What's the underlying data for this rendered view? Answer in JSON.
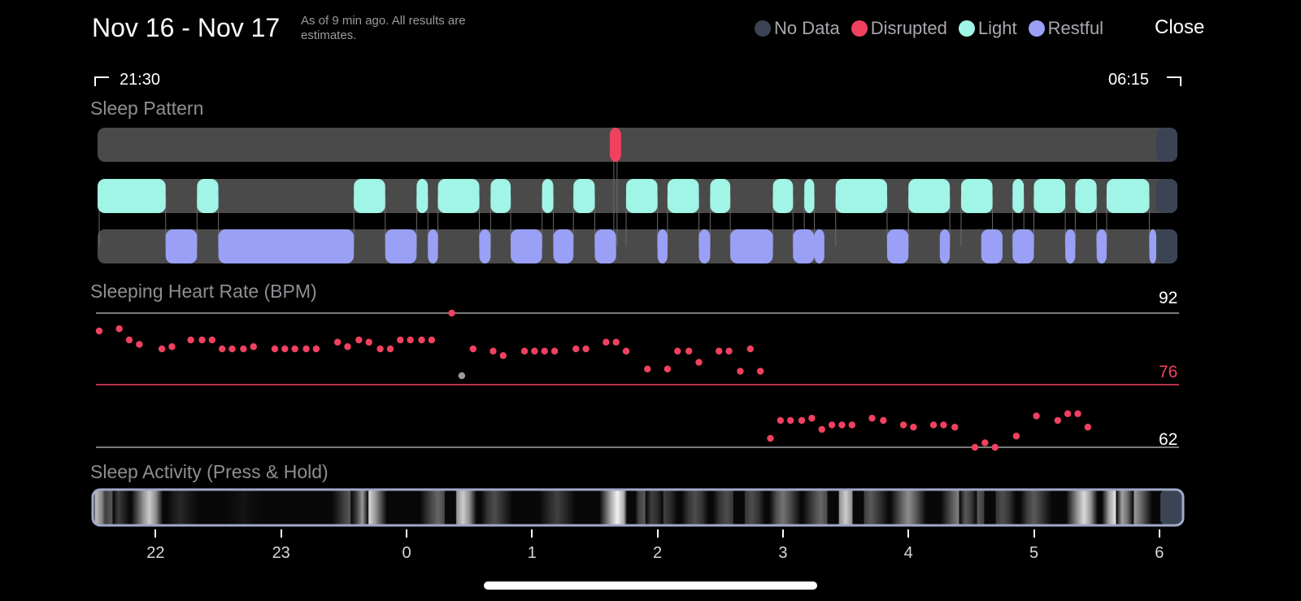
{
  "header": {
    "title": "Nov 16 - Nov 17",
    "subtitle": "As of 9 min ago. All results are estimates.",
    "close_label": "Close"
  },
  "legend": [
    {
      "label": "No Data",
      "color": "#3b4454"
    },
    {
      "label": "Disrupted",
      "color": "#f0415f"
    },
    {
      "label": "Light",
      "color": "#a1f5e6"
    },
    {
      "label": "Restful",
      "color": "#9aa0f5"
    }
  ],
  "timeline": {
    "start": "21:30",
    "end": "06:15"
  },
  "sleep_pattern": {
    "label": "Sleep Pattern",
    "disrupted": [
      [
        1.62,
        1.71
      ]
    ],
    "light": [
      [
        -2.5,
        -1.92
      ],
      [
        -1.67,
        -1.5
      ],
      [
        -0.42,
        -0.17
      ],
      [
        0.08,
        0.17
      ],
      [
        0.25,
        0.58
      ],
      [
        0.67,
        0.83
      ],
      [
        1.08,
        1.17
      ],
      [
        1.33,
        1.5
      ],
      [
        1.75,
        2.0
      ],
      [
        2.08,
        2.33
      ],
      [
        2.42,
        2.58
      ],
      [
        2.92,
        3.08
      ],
      [
        3.17,
        3.25
      ],
      [
        3.42,
        3.83
      ],
      [
        4.0,
        4.33
      ],
      [
        4.42,
        4.67
      ],
      [
        4.83,
        4.92
      ],
      [
        5.0,
        5.25
      ],
      [
        5.33,
        5.5
      ],
      [
        5.58,
        5.92
      ]
    ],
    "restful": [
      [
        -1.92,
        -1.67
      ],
      [
        -1.5,
        -0.42
      ],
      [
        -0.17,
        0.08
      ],
      [
        0.17,
        0.25
      ],
      [
        0.58,
        0.67
      ],
      [
        0.83,
        1.08
      ],
      [
        1.17,
        1.33
      ],
      [
        1.5,
        1.67
      ],
      [
        2.0,
        2.08
      ],
      [
        2.33,
        2.42
      ],
      [
        2.58,
        2.92
      ],
      [
        3.08,
        3.25
      ],
      [
        3.25,
        3.33
      ],
      [
        3.83,
        4.0
      ],
      [
        4.25,
        4.33
      ],
      [
        4.58,
        4.75
      ],
      [
        4.83,
        5.0
      ],
      [
        5.25,
        5.33
      ],
      [
        5.5,
        5.58
      ],
      [
        5.92,
        6.0
      ]
    ]
  },
  "heart_rate": {
    "label": "Sleeping Heart Rate (BPM)",
    "max_label": "92",
    "avg_label": "76",
    "min_label": "62",
    "max": 92,
    "avg": 76,
    "min": 62,
    "points": [
      [
        -2.45,
        88
      ],
      [
        -2.29,
        88.5
      ],
      [
        -2.21,
        86
      ],
      [
        -2.13,
        85
      ],
      [
        -1.95,
        84
      ],
      [
        -1.87,
        84.5
      ],
      [
        -1.72,
        86
      ],
      [
        -1.63,
        86
      ],
      [
        -1.55,
        86
      ],
      [
        -1.47,
        84
      ],
      [
        -1.39,
        84
      ],
      [
        -1.3,
        84
      ],
      [
        -1.22,
        84.5
      ],
      [
        -1.05,
        84
      ],
      [
        -0.97,
        84
      ],
      [
        -0.89,
        84
      ],
      [
        -0.8,
        84
      ],
      [
        -0.72,
        84
      ],
      [
        -0.55,
        85.5
      ],
      [
        -0.47,
        84.5
      ],
      [
        -0.38,
        86
      ],
      [
        -0.3,
        85.5
      ],
      [
        -0.21,
        84
      ],
      [
        -0.13,
        84
      ],
      [
        -0.05,
        86
      ],
      [
        0.03,
        86
      ],
      [
        0.12,
        86
      ],
      [
        0.2,
        86
      ],
      [
        0.36,
        92
      ],
      [
        0.44,
        78
      ],
      [
        0.53,
        84
      ],
      [
        0.69,
        83.5
      ],
      [
        0.77,
        82.5
      ],
      [
        0.94,
        83.5
      ],
      [
        1.02,
        83.5
      ],
      [
        1.1,
        83.5
      ],
      [
        1.18,
        83.5
      ],
      [
        1.35,
        84
      ],
      [
        1.43,
        84
      ],
      [
        1.59,
        85.5
      ],
      [
        1.67,
        85.5
      ],
      [
        1.75,
        83.5
      ],
      [
        1.92,
        79.5
      ],
      [
        2.08,
        79.5
      ],
      [
        2.16,
        83.5
      ],
      [
        2.25,
        83.5
      ],
      [
        2.33,
        81
      ],
      [
        2.49,
        83.5
      ],
      [
        2.57,
        83.5
      ],
      [
        2.66,
        79
      ],
      [
        2.74,
        84
      ],
      [
        2.82,
        79
      ],
      [
        2.9,
        64
      ],
      [
        2.98,
        68
      ],
      [
        3.06,
        68
      ],
      [
        3.15,
        68
      ],
      [
        3.23,
        68.5
      ],
      [
        3.31,
        66
      ],
      [
        3.39,
        67
      ],
      [
        3.47,
        67
      ],
      [
        3.55,
        67
      ],
      [
        3.71,
        68.5
      ],
      [
        3.8,
        68
      ],
      [
        3.96,
        67
      ],
      [
        4.04,
        66.5
      ],
      [
        4.2,
        67
      ],
      [
        4.28,
        67
      ],
      [
        4.37,
        66.5
      ],
      [
        4.53,
        62
      ],
      [
        4.61,
        63
      ],
      [
        4.69,
        62
      ],
      [
        4.86,
        64.5
      ],
      [
        5.02,
        69
      ],
      [
        5.19,
        68
      ],
      [
        5.27,
        69.5
      ],
      [
        5.35,
        69.5
      ],
      [
        5.43,
        66.5
      ]
    ],
    "highlight_index": 29,
    "point_color": "#f0415f",
    "highlight_color": "#9a9a9a"
  },
  "activity": {
    "label": "Sleep Activity (Press & Hold)",
    "ticks": [
      "22",
      "23",
      "0",
      "1",
      "2",
      "3",
      "4",
      "5",
      "6"
    ],
    "bands": [
      [
        -2.48,
        0.75
      ],
      [
        -2.35,
        0.35
      ],
      [
        -2.05,
        0.8
      ],
      [
        -1.8,
        0.15
      ],
      [
        -1.3,
        0.08
      ],
      [
        -0.45,
        0.35
      ],
      [
        -0.3,
        0.85
      ],
      [
        0.25,
        0.4
      ],
      [
        0.45,
        0.8
      ],
      [
        0.7,
        0.3
      ],
      [
        1.2,
        0.25
      ],
      [
        1.68,
        0.95
      ],
      [
        1.9,
        0.35
      ],
      [
        2.05,
        0.25
      ],
      [
        2.3,
        0.3
      ],
      [
        2.55,
        0.3
      ],
      [
        2.75,
        0.3
      ],
      [
        3.0,
        0.45
      ],
      [
        3.3,
        0.4
      ],
      [
        3.5,
        0.8
      ],
      [
        3.7,
        0.35
      ],
      [
        4.0,
        0.55
      ],
      [
        4.4,
        0.5
      ],
      [
        4.55,
        0.35
      ],
      [
        4.75,
        0.3
      ],
      [
        5.0,
        0.35
      ],
      [
        5.4,
        0.85
      ],
      [
        5.65,
        0.9
      ],
      [
        5.8,
        0.6
      ]
    ]
  }
}
